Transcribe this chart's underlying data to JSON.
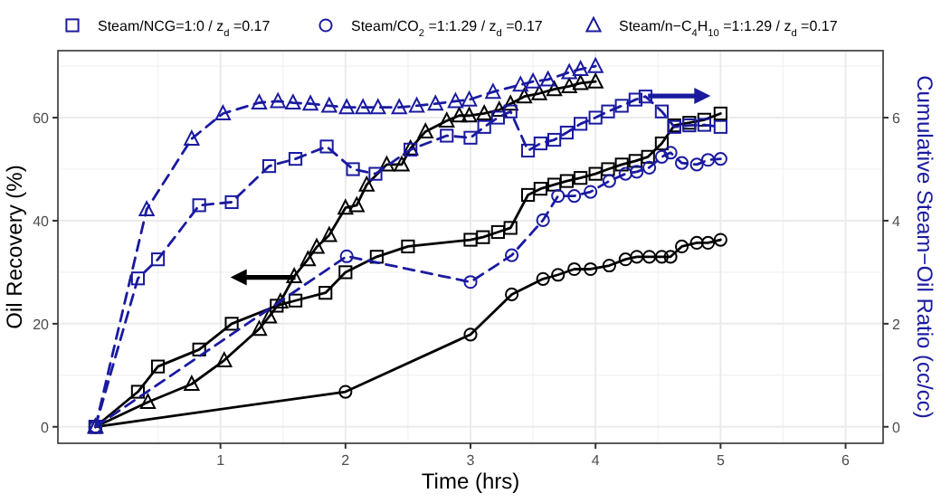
{
  "chart_data": {
    "type": "line",
    "xlabel": "Time (hrs)",
    "ylabel": "Oil Recovery (%)",
    "y2label": "Cumulative Steam−Oil Ratio (cc/cc)",
    "xlim": [
      -0.3,
      6.3
    ],
    "xticks": [
      1,
      2,
      3,
      4,
      5,
      6
    ],
    "ylim": [
      -3.2,
      73
    ],
    "yticks": [
      0,
      20,
      40,
      60
    ],
    "y2lim": [
      -0.32,
      7.3
    ],
    "y2ticks": [
      0,
      2,
      4,
      6
    ],
    "grid": true,
    "legend": "top",
    "series": [
      {
        "color": "#000000",
        "marker": "square",
        "line_style": "solid",
        "x": [
          0,
          0.34,
          0.5,
          0.83,
          1.09,
          1.45,
          1.6,
          1.84,
          2,
          2.25,
          2.5,
          3,
          3.1,
          3.22,
          3.32,
          3.46,
          3.56,
          3.67,
          3.77,
          3.88,
          4,
          4.1,
          4.21,
          4.32,
          4.42,
          4.53,
          4.63,
          4.75,
          4.87,
          5
        ],
        "values": [
          0,
          6.8,
          11.7,
          15,
          20,
          23.5,
          24.5,
          26,
          30,
          33,
          35,
          36.3,
          36.8,
          37.8,
          38.6,
          45,
          46.2,
          47,
          47.7,
          48.3,
          49.1,
          50,
          50.9,
          51.6,
          52.4,
          55,
          58.5,
          59,
          59.6,
          60.8
        ]
      },
      {
        "color": "#000000",
        "marker": "circle",
        "line_style": "solid",
        "x": [
          0,
          2,
          3,
          3.33,
          3.58,
          3.7,
          3.83,
          3.96,
          4.11,
          4.24,
          4.33,
          4.43,
          4.53,
          4.6,
          4.69,
          4.81,
          4.9,
          5
        ],
        "values": [
          0,
          6.8,
          17.9,
          25.7,
          28.7,
          29.5,
          30.6,
          30.6,
          31.3,
          32.5,
          33,
          33,
          33,
          33,
          35,
          35.7,
          35.7,
          36.3
        ]
      },
      {
        "color": "#000000",
        "marker": "triangle",
        "line_style": "solid",
        "x": [
          0,
          0.42,
          0.77,
          1.03,
          1.31,
          1.39,
          1.48,
          1.59,
          1.7,
          1.77,
          1.87,
          2,
          2.09,
          2.17,
          2.33,
          2.45,
          2.52,
          2.64,
          2.81,
          2.91,
          2.99,
          3.11,
          3.23,
          3.32,
          3.43,
          3.55,
          3.67,
          3.79,
          3.88,
          4
        ],
        "values": [
          0,
          4.8,
          8.3,
          12.9,
          19,
          21.4,
          24.3,
          29.2,
          32.5,
          34.9,
          37.2,
          42.5,
          43,
          47,
          50.9,
          50.9,
          54,
          57.3,
          59.4,
          60.4,
          60.4,
          60.8,
          61.5,
          62.7,
          64.1,
          64.7,
          65.5,
          66.1,
          66.7,
          67
        ]
      },
      {
        "name": "Steam/NCG=1:0 / z$_{d}$ =0.17",
        "color": "#1a1aa0",
        "marker": "square",
        "line_style": "dashed",
        "axis": "y2",
        "x": [
          0,
          0.34,
          0.5,
          0.83,
          1.09,
          1.39,
          1.6,
          1.85,
          2.06,
          2.24,
          2.52,
          2.81,
          3,
          3.11,
          3.22,
          3.32,
          3.46,
          3.56,
          3.67,
          3.77,
          3.88,
          4,
          4.1,
          4.21,
          4.32,
          4.4,
          4.53,
          4.63,
          4.75,
          4.87,
          5
        ],
        "values": [
          0,
          2.88,
          3.25,
          4.3,
          4.36,
          5.06,
          5.2,
          5.44,
          5.0,
          4.91,
          5.38,
          5.65,
          5.61,
          5.82,
          6,
          6.12,
          5.36,
          5.5,
          5.57,
          5.71,
          5.88,
          6,
          6.12,
          6.23,
          6.35,
          6.41,
          6.12,
          5.82,
          5.85,
          5.86,
          5.82
        ]
      },
      {
        "name": "Steam/CO$_{2}$ =1:1.29 / z$_{d}$ =0.17",
        "color": "#1a1aa0",
        "marker": "circle",
        "line_style": "dashed",
        "axis": "y2",
        "x": [
          0,
          2.01,
          3,
          3.33,
          3.58,
          3.7,
          3.83,
          3.96,
          4.11,
          4.24,
          4.33,
          4.43,
          4.53,
          4.6,
          4.69,
          4.81,
          4.9,
          5
        ],
        "values": [
          0,
          3.31,
          2.81,
          3.33,
          4.01,
          4.48,
          4.48,
          4.56,
          4.77,
          4.91,
          4.95,
          5.03,
          5.24,
          5.32,
          5.12,
          5.09,
          5.18,
          5.2
        ]
      },
      {
        "name": "Steam/n−C$_{4}$H$_{10}$ =1:1.29 / z$_{d}$ =0.17",
        "color": "#1a1aa0",
        "marker": "triangle",
        "line_style": "dashed",
        "axis": "y2",
        "x": [
          0,
          0.41,
          0.77,
          1.02,
          1.31,
          1.46,
          1.58,
          1.72,
          1.87,
          2.01,
          2.14,
          2.26,
          2.43,
          2.57,
          2.72,
          2.88,
          2.99,
          3.18,
          3.4,
          3.5,
          3.62,
          3.79,
          3.88,
          4
        ],
        "values": [
          0,
          4.22,
          5.59,
          6.08,
          6.29,
          6.32,
          6.29,
          6.27,
          6.23,
          6.2,
          6.2,
          6.2,
          6.2,
          6.23,
          6.27,
          6.32,
          6.35,
          6.5,
          6.64,
          6.7,
          6.74,
          6.88,
          6.94,
          7.0
        ]
      }
    ]
  }
}
